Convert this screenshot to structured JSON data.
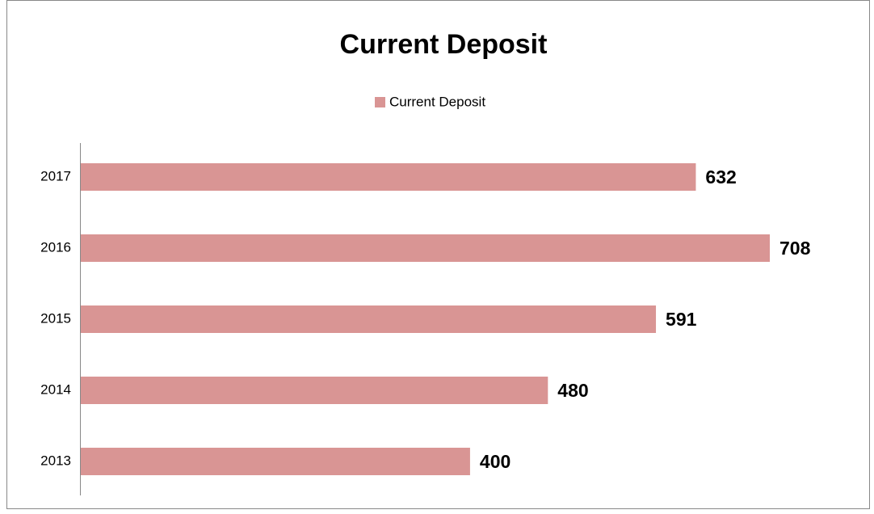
{
  "chart_data": {
    "type": "bar",
    "orientation": "horizontal",
    "title": "Current Deposit",
    "categories": [
      "2013",
      "2014",
      "2015",
      "2016",
      "2017"
    ],
    "series": [
      {
        "name": "Current Deposit",
        "color": "#d99594",
        "values": [
          400,
          480,
          591,
          708,
          632
        ]
      }
    ],
    "legend": "top"
  }
}
